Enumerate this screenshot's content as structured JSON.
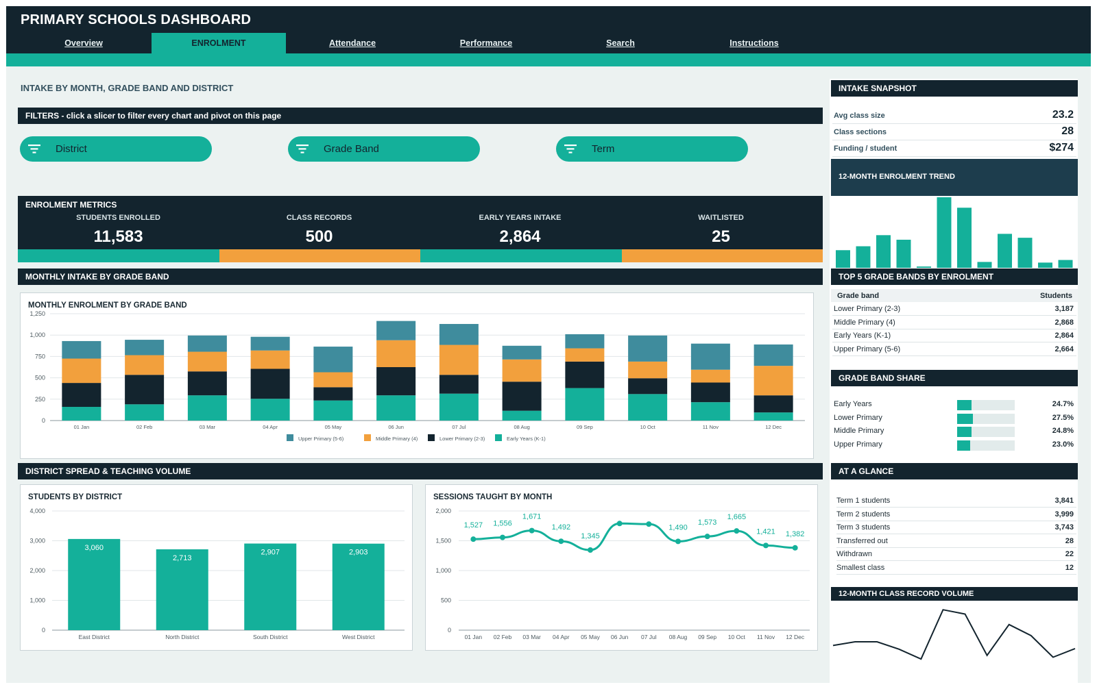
{
  "app": {
    "title": "PRIMARY SCHOOLS DASHBOARD"
  },
  "nav": {
    "tabs": [
      "Overview",
      "ENROLMENT",
      "Attendance",
      "Performance",
      "Search",
      "Instructions"
    ],
    "active": "ENROLMENT"
  },
  "page": {
    "section_title": "INTAKE BY MONTH, GRADE BAND AND DISTRICT"
  },
  "filters": {
    "header_label": "FILTERS  -  click a slicer to filter every chart and pivot on this page",
    "slicers": [
      "District",
      "Grade Band",
      "Term"
    ]
  },
  "metrics": {
    "header": "ENROLMENT METRICS",
    "items": [
      {
        "label": "STUDENTS ENROLLED",
        "value": "11,583"
      },
      {
        "label": "CLASS RECORDS",
        "value": "500"
      },
      {
        "label": "EARLY YEARS INTAKE",
        "value": "2,864"
      },
      {
        "label": "WAITLISTED",
        "value": "25"
      }
    ],
    "strip_colors": [
      "#14b09a",
      "#f2a03d",
      "#14b09a",
      "#f2a03d"
    ]
  },
  "monthly": {
    "header": "MONTHLY INTAKE BY GRADE BAND",
    "chart_title": "MONTHLY ENROLMENT BY GRADE BAND",
    "y_ticks": [
      "1,250",
      "1,000",
      "750",
      "500",
      "250",
      "0"
    ]
  },
  "district_section": {
    "header": "DISTRICT SPREAD & TEACHING VOLUME"
  },
  "district_chart": {
    "title": "STUDENTS BY DISTRICT",
    "y_ticks": [
      "4,000",
      "3,000",
      "2,000",
      "1,000",
      "0"
    ]
  },
  "sessions_chart": {
    "title": "SESSIONS TAUGHT BY MONTH",
    "y_ticks": [
      "2,000",
      "1,500",
      "1,000",
      "500",
      "0"
    ]
  },
  "chart_data": [
    {
      "type": "bar",
      "stacked": true,
      "title": "MONTHLY ENROLMENT BY GRADE BAND",
      "categories": [
        "01 Jan",
        "02 Feb",
        "03 Mar",
        "04 Apr",
        "05 May",
        "06 Jun",
        "07 Jul",
        "08 Aug",
        "09 Sep",
        "10 Oct",
        "11 Nov",
        "12 Dec"
      ],
      "ylim": [
        0,
        1250
      ],
      "series": [
        {
          "name": "Early Years (K-1)",
          "color": "#14b09a",
          "values": [
            160,
            190,
            295,
            255,
            235,
            295,
            315,
            115,
            380,
            310,
            215,
            95
          ]
        },
        {
          "name": "Lower Primary (2-3)",
          "color": "#13242e",
          "values": [
            280,
            345,
            280,
            350,
            155,
            330,
            220,
            340,
            310,
            185,
            230,
            200
          ]
        },
        {
          "name": "Middle Primary (4)",
          "color": "#f2a03d",
          "values": [
            285,
            230,
            230,
            215,
            175,
            315,
            350,
            260,
            155,
            195,
            150,
            345
          ]
        },
        {
          "name": "Upper Primary (5-6)",
          "color": "#3f8c9d",
          "values": [
            205,
            180,
            190,
            160,
            300,
            225,
            245,
            160,
            165,
            305,
            305,
            250
          ]
        }
      ],
      "grid": true,
      "legend": "bottom"
    },
    {
      "type": "bar",
      "title": "STUDENTS BY DISTRICT",
      "categories": [
        "East District",
        "North District",
        "South District",
        "West District"
      ],
      "values": [
        3060,
        2713,
        2907,
        2903
      ],
      "labels": [
        "3,060",
        "2,713",
        "2,907",
        "2,903"
      ],
      "ylim": [
        0,
        4000
      ],
      "grid": true
    },
    {
      "type": "line",
      "title": "SESSIONS TAUGHT BY MONTH",
      "categories": [
        "01 Jan",
        "02 Feb",
        "03 Mar",
        "04 Apr",
        "05 May",
        "06 Jun",
        "07 Jul",
        "08 Aug",
        "09 Sep",
        "10 Oct",
        "11 Nov",
        "12 Dec"
      ],
      "values": [
        1527,
        1556,
        1671,
        1492,
        1345,
        1790,
        1780,
        1490,
        1573,
        1665,
        1421,
        1382
      ],
      "labels": [
        "1,527",
        "1,556",
        "1,671",
        "1,492",
        "1,345",
        "",
        "",
        "1,490",
        "1,573",
        "1,665",
        "1,421",
        "1,382"
      ],
      "ylim": [
        0,
        2000
      ],
      "grid": true
    },
    {
      "type": "bar",
      "title": "12-MONTH ENROLMENT TREND",
      "values": [
        27,
        33,
        50,
        43,
        2,
        108,
        92,
        9,
        52,
        46,
        8,
        12
      ]
    },
    {
      "type": "line",
      "title": "12-MONTH CLASS RECORD VOLUME",
      "values": [
        34,
        40,
        40,
        28,
        12,
        92,
        85,
        18,
        68,
        50,
        15,
        29
      ]
    }
  ],
  "snapshot": {
    "header": "INTAKE SNAPSHOT",
    "rows": [
      {
        "label": "Avg class size",
        "value": "23.2"
      },
      {
        "label": "Class sections",
        "value": "28"
      },
      {
        "label": "Funding / student",
        "value": "$274"
      }
    ],
    "trend_header": "12-MONTH ENROLMENT TREND"
  },
  "top5": {
    "header": "TOP 5 GRADE BANDS BY ENROLMENT",
    "col_band": "Grade band",
    "col_students": "Students",
    "rows": [
      {
        "band": "Lower Primary (2-3)",
        "students": "3,187"
      },
      {
        "band": "Middle Primary (4)",
        "students": "2,868"
      },
      {
        "band": "Early Years (K-1)",
        "students": "2,864"
      },
      {
        "band": "Upper Primary (5-6)",
        "students": "2,664"
      }
    ]
  },
  "share": {
    "header": "GRADE BAND SHARE",
    "rows": [
      {
        "label": "Early Years",
        "pct": "24.7%",
        "fraction": 0.247
      },
      {
        "label": "Lower Primary",
        "pct": "27.5%",
        "fraction": 0.275
      },
      {
        "label": "Middle Primary",
        "pct": "24.8%",
        "fraction": 0.248
      },
      {
        "label": "Upper Primary",
        "pct": "23.0%",
        "fraction": 0.23
      }
    ]
  },
  "glance": {
    "header": "AT A GLANCE",
    "rows": [
      {
        "label": "Term 1 students",
        "value": "3,841"
      },
      {
        "label": "Term 2 students",
        "value": "3,999"
      },
      {
        "label": "Term 3 students",
        "value": "3,743"
      },
      {
        "label": "Transferred out",
        "value": "28"
      },
      {
        "label": "Withdrawn",
        "value": "22"
      },
      {
        "label": "Smallest class",
        "value": "12"
      }
    ]
  },
  "record_volume": {
    "header": "12-MONTH CLASS RECORD VOLUME"
  },
  "colors": {
    "navy": "#13242e",
    "teal": "#14b09a",
    "orange": "#f2a03d",
    "steel": "#3f8c9d"
  }
}
